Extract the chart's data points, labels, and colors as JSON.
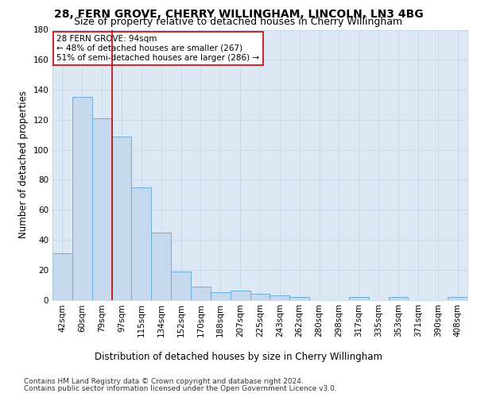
{
  "title1": "28, FERN GROVE, CHERRY WILLINGHAM, LINCOLN, LN3 4BG",
  "title2": "Size of property relative to detached houses in Cherry Willingham",
  "xlabel": "Distribution of detached houses by size in Cherry Willingham",
  "ylabel": "Number of detached properties",
  "footnote1": "Contains HM Land Registry data © Crown copyright and database right 2024.",
  "footnote2": "Contains public sector information licensed under the Open Government Licence v3.0.",
  "bar_labels": [
    "42sqm",
    "60sqm",
    "79sqm",
    "97sqm",
    "115sqm",
    "134sqm",
    "152sqm",
    "170sqm",
    "188sqm",
    "207sqm",
    "225sqm",
    "243sqm",
    "262sqm",
    "280sqm",
    "298sqm",
    "317sqm",
    "335sqm",
    "353sqm",
    "371sqm",
    "390sqm",
    "408sqm"
  ],
  "bar_values": [
    31,
    135,
    121,
    109,
    75,
    45,
    19,
    9,
    5,
    6,
    4,
    3,
    2,
    0,
    0,
    2,
    0,
    2,
    0,
    0,
    2
  ],
  "bar_color": "#c5d8ee",
  "bar_edge_color": "#6aaed6",
  "reference_line_x": 2.5,
  "reference_line_color": "#cc0000",
  "annotation_text": "28 FERN GROVE: 94sqm\n← 48% of detached houses are smaller (267)\n51% of semi-detached houses are larger (286) →",
  "annotation_box_color": "#ffffff",
  "annotation_box_edge_color": "#cc0000",
  "ylim": [
    0,
    180
  ],
  "yticks": [
    0,
    20,
    40,
    60,
    80,
    100,
    120,
    140,
    160,
    180
  ],
  "grid_color": "#c8d8e8",
  "background_color": "#dce9f5",
  "title1_fontsize": 10,
  "title2_fontsize": 9,
  "tick_fontsize": 7.5,
  "ylabel_fontsize": 8.5,
  "xlabel_fontsize": 8.5,
  "annotation_fontsize": 7.5,
  "footnote_fontsize": 6.5
}
